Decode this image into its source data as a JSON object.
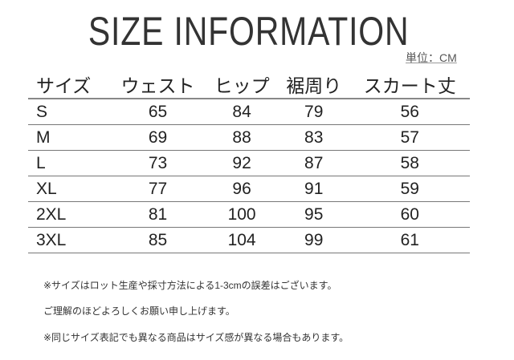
{
  "title": "SIZE INFORMATION",
  "unit": "単位：CM",
  "table": {
    "headers": [
      "サイズ",
      "ウェスト",
      "ヒップ",
      "裾周り",
      "スカート丈"
    ],
    "rows": [
      [
        "S",
        "65",
        "84",
        "79",
        "56"
      ],
      [
        "M",
        "69",
        "88",
        "83",
        "57"
      ],
      [
        "L",
        "73",
        "92",
        "87",
        "58"
      ],
      [
        "XL",
        "77",
        "96",
        "91",
        "59"
      ],
      [
        "2XL",
        "81",
        "100",
        "95",
        "60"
      ],
      [
        "3XL",
        "85",
        "104",
        "99",
        "61"
      ]
    ]
  },
  "notes": [
    "※サイズはロット生産や採寸方法による1-3cmの誤差はございます。",
    "ご理解のほどよろしくお願い申し上げます。",
    "※同じサイズ表記でも異なる商品はサイズ感が異なる場合もあります。"
  ]
}
